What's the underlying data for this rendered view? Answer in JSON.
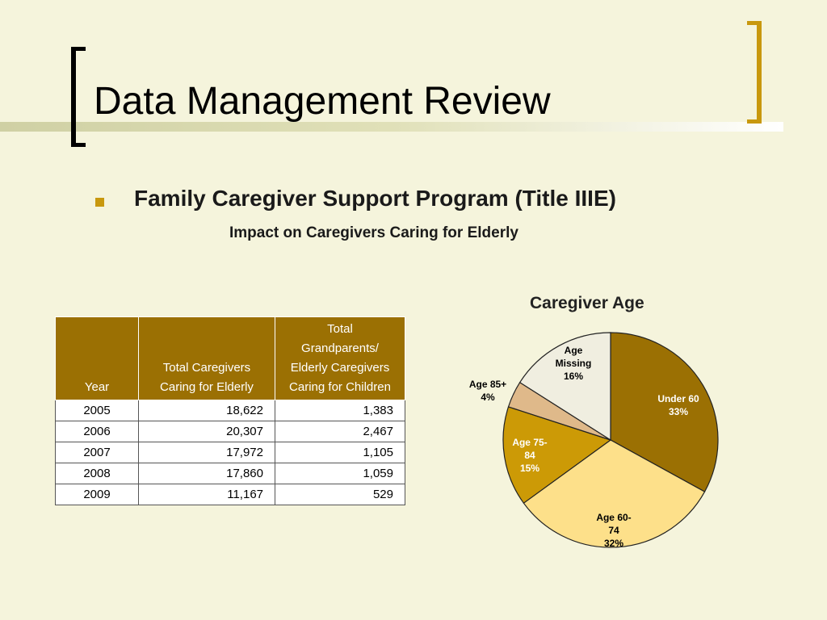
{
  "slide": {
    "title": "Data Management Review",
    "heading": "Family Caregiver Support Program (Title IIIE)",
    "subheading": "Impact on Caregivers Caring for Elderly",
    "accent_color": "#c8980e"
  },
  "table": {
    "headers": {
      "year": "Year",
      "elderly": [
        "Total Caregivers",
        "Caring for Elderly"
      ],
      "children": [
        "Total",
        "Grandparents/",
        "Elderly Caregivers",
        "Caring for Children"
      ]
    },
    "rows": [
      {
        "year": "2005",
        "elderly": "18,622",
        "children": "1,383"
      },
      {
        "year": "2006",
        "elderly": "20,307",
        "children": "2,467"
      },
      {
        "year": "2007",
        "elderly": "17,972",
        "children": "1,105"
      },
      {
        "year": "2008",
        "elderly": "17,860",
        "children": "1,059"
      },
      {
        "year": "2009",
        "elderly": "11,167",
        "children": "529"
      }
    ]
  },
  "chart_data": {
    "type": "pie",
    "title": "Caregiver Age",
    "slices": [
      {
        "label": [
          "Under 60",
          "33%"
        ],
        "value": 33,
        "color": "#9b7003"
      },
      {
        "label": [
          "Age 60-",
          "74",
          "32%"
        ],
        "value": 32,
        "color": "#fde08a"
      },
      {
        "label": [
          "Age 75-",
          "84",
          "15%"
        ],
        "value": 15,
        "color": "#cc9a06"
      },
      {
        "label": [
          "Age 85+",
          "4%"
        ],
        "value": 4,
        "color": "#dfb98a"
      },
      {
        "label": [
          "Age",
          "Missing",
          "16%"
        ],
        "value": 16,
        "color": "#f0eee0"
      }
    ],
    "label_colors": [
      "#ffffff",
      "#000000",
      "#ffffff",
      "#000000",
      "#000000"
    ]
  }
}
